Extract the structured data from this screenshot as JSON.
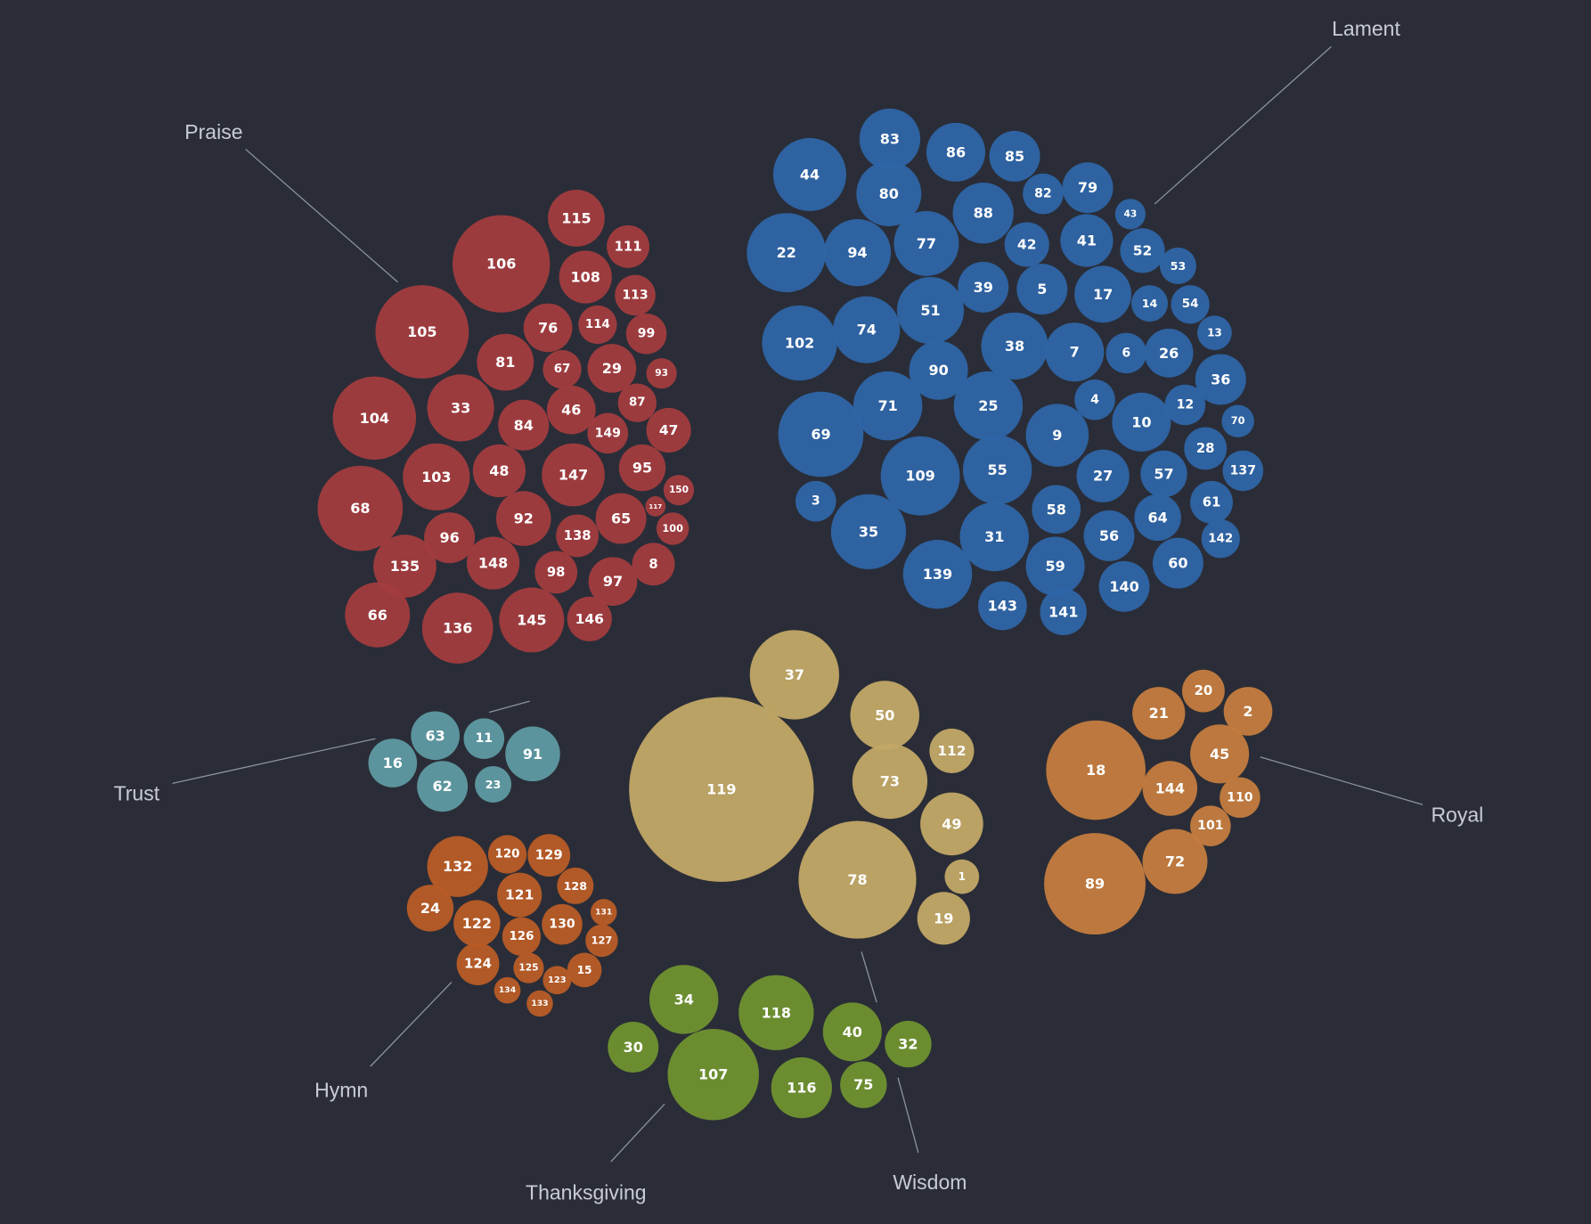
{
  "chart_data": {
    "type": "bubble-cluster",
    "groups": [
      {
        "name": "Praise",
        "color": "#a23c3e",
        "psalms": [
          115,
          111,
          106,
          108,
          113,
          105,
          76,
          114,
          99,
          81,
          67,
          29,
          93,
          104,
          33,
          84,
          46,
          87,
          149,
          47,
          103,
          48,
          147,
          95,
          150,
          117,
          68,
          96,
          92,
          138,
          65,
          100,
          135,
          148,
          98,
          97,
          8,
          66,
          136,
          145,
          146
        ]
      },
      {
        "name": "Lament",
        "color": "#2e65a6",
        "psalms": [
          83,
          86,
          85,
          44,
          80,
          82,
          79,
          43,
          88,
          22,
          94,
          77,
          42,
          41,
          52,
          53,
          39,
          5,
          17,
          14,
          54,
          51,
          102,
          74,
          38,
          7,
          6,
          26,
          13,
          90,
          36,
          71,
          25,
          4,
          12,
          69,
          10,
          70,
          9,
          28,
          109,
          55,
          27,
          57,
          137,
          3,
          61,
          58,
          64,
          35,
          31,
          56,
          142,
          60,
          139,
          59,
          140,
          143,
          141
        ]
      },
      {
        "name": "Trust",
        "color": "#5e9aa2",
        "psalms": [
          63,
          11,
          16,
          91,
          62,
          23
        ]
      },
      {
        "name": "Wisdom",
        "color": "#c2a866",
        "psalms": [
          37,
          50,
          112,
          119,
          73,
          49,
          78,
          1,
          19
        ]
      },
      {
        "name": "Royal",
        "color": "#c47c3e",
        "psalms": [
          20,
          21,
          2,
          45,
          18,
          144,
          110,
          101,
          72,
          89
        ]
      },
      {
        "name": "Hymn",
        "color": "#b85c26",
        "psalms": [
          132,
          120,
          129,
          128,
          121,
          24,
          131,
          122,
          130,
          127,
          126,
          124,
          125,
          15,
          123,
          134,
          133
        ]
      },
      {
        "name": "Thanksgiving",
        "color": "#6f922f",
        "psalms": [
          34,
          118,
          40,
          32,
          30,
          107,
          116,
          75
        ]
      }
    ]
  }
}
